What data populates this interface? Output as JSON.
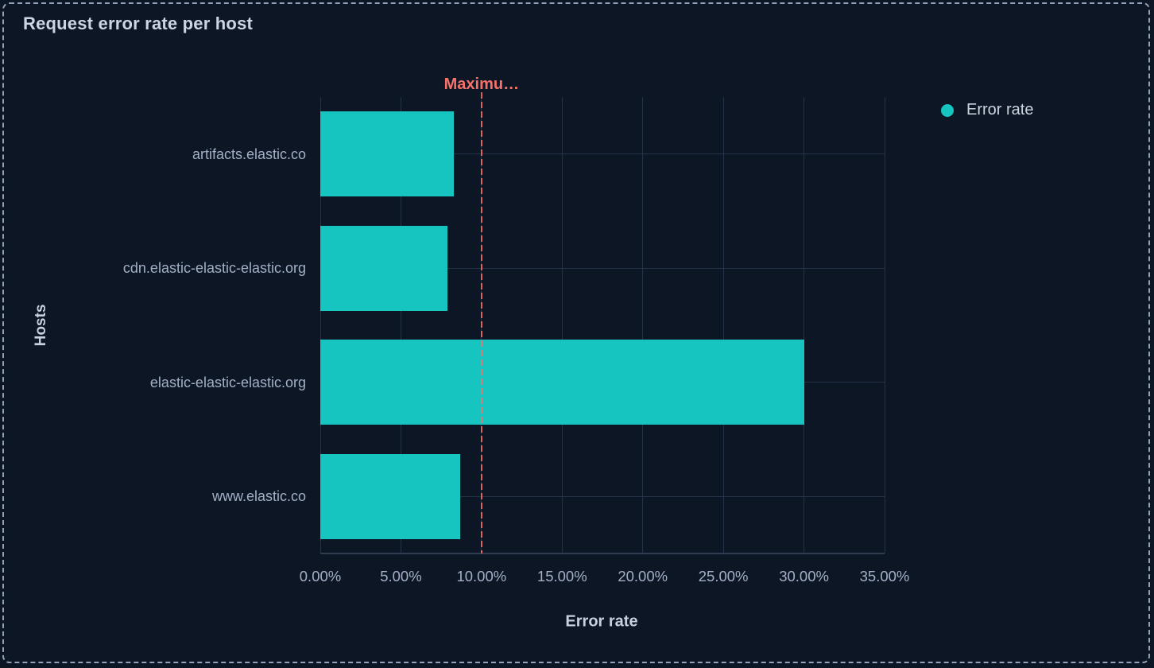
{
  "panel": {
    "title": "Request error rate per host"
  },
  "legend": {
    "position": "right-top",
    "items": [
      {
        "label": "Error rate",
        "color": "#16c5c0"
      }
    ]
  },
  "chart_data": {
    "type": "bar",
    "orientation": "horizontal",
    "title": "Request error rate per host",
    "xlabel": "Error rate",
    "ylabel": "Hosts",
    "categories": [
      "artifacts.elastic.co",
      "cdn.elastic-elastic-elastic.org",
      "elastic-elastic-elastic.org",
      "www.elastic.co"
    ],
    "series": [
      {
        "name": "Error rate",
        "unit": "%",
        "values": [
          8.3,
          7.9,
          30,
          8.7
        ],
        "color": "#16c5c0"
      }
    ],
    "xlim": [
      0,
      35
    ],
    "xticks": [
      0,
      5,
      10,
      15,
      20,
      25,
      30,
      35
    ],
    "xtick_labels": [
      "0.00%",
      "5.00%",
      "10.00%",
      "15.00%",
      "20.00%",
      "25.00%",
      "30.00%",
      "35.00%"
    ],
    "grid": true,
    "threshold": {
      "value": 10,
      "label": "Maximu…",
      "color": "#f6726a"
    }
  },
  "colors": {
    "background": "#0d1625",
    "panel_border": "#94a1b9",
    "bar": "#16c5c0",
    "threshold": "#f6726a",
    "gridline": "#253248",
    "axis_line": "#2e3c52",
    "title_text": "#ccd5e2",
    "tick_text": "#a4afc6",
    "axis_title_text": "#c6d0de",
    "legend_text": "#ccd4df"
  }
}
